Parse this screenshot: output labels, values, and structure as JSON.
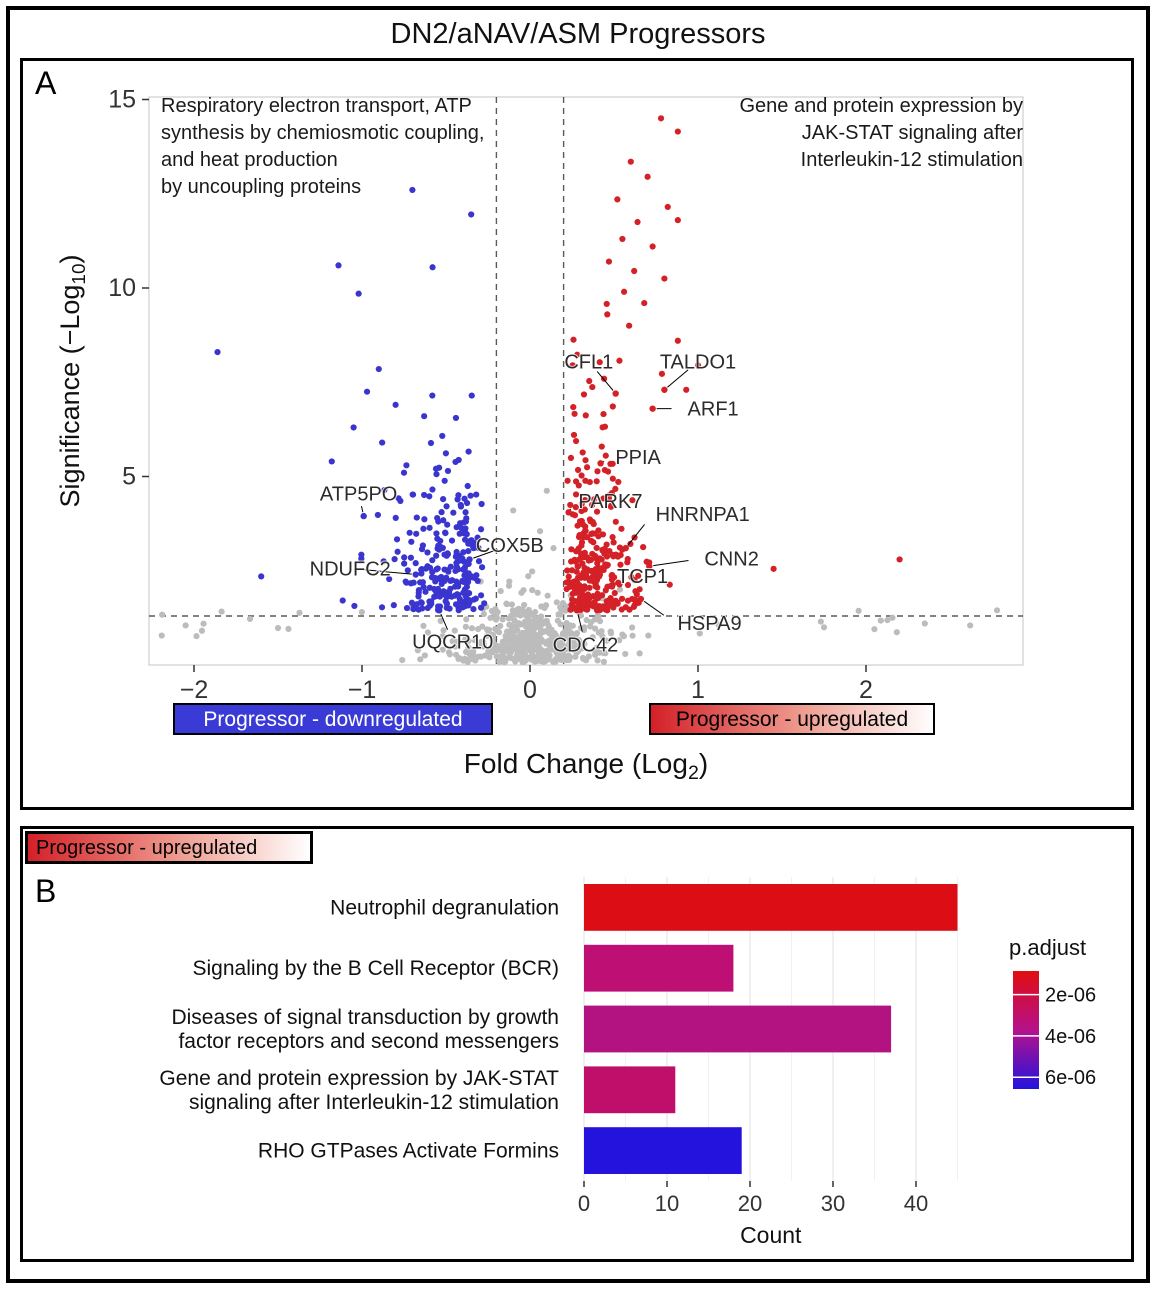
{
  "title": "DN2/aNAV/ASM Progressors",
  "panel_a": {
    "label": "A",
    "annotation_left": {
      "lines": [
        "Respiratory electron transport, ATP",
        "synthesis by chemiosmotic coupling,",
        "and heat production",
        "by uncoupling proteins"
      ]
    },
    "annotation_right": {
      "lines": [
        "Gene and protein expression by",
        "JAK-STAT signaling after",
        "Interleukin-12 stimulation"
      ]
    },
    "legend_down": "Progressor - downregulated",
    "legend_up": "Progressor - upregulated"
  },
  "panel_b": {
    "label": "B",
    "header": "Progressor - upregulated"
  },
  "colors": {
    "up_point": "#d42127",
    "down_point": "#3a35cf",
    "ns_point": "#bcbcbc",
    "dashed_line": "#5a5a5a",
    "axis_text": "#333333",
    "gene_label": "#2b2b2b"
  },
  "chart_data": [
    {
      "type": "scatter",
      "subtype": "volcano",
      "xlabel": {
        "pre": "Fold Change (Log",
        "sub": "2",
        "post": ")"
      },
      "ylabel": {
        "pre": "Significance (−Log",
        "sub": "10",
        "post": ")"
      },
      "xlim": [
        -2.3,
        2.95
      ],
      "ylim": [
        0,
        15.3
      ],
      "x_ticks": [
        {
          "v": -2,
          "label": "−2"
        },
        {
          "v": -1,
          "label": "−1"
        },
        {
          "v": 0,
          "label": "0"
        },
        {
          "v": 1,
          "label": "1"
        },
        {
          "v": 2,
          "label": "2"
        }
      ],
      "y_ticks": [
        {
          "v": 5,
          "label": "5"
        },
        {
          "v": 10,
          "label": "10"
        },
        {
          "v": 15,
          "label": "15"
        }
      ],
      "vlines": [
        -0.2,
        0.2
      ],
      "hline": 1.3,
      "clouds": {
        "up": {
          "n": 330,
          "x0": 0.21,
          "xg": 0.17,
          "xu": 0.08,
          "xmax": 1.32,
          "y0": 1.45,
          "ye": 1.6,
          "ymax": 9.6,
          "seed": 11
        },
        "down": {
          "n": 265,
          "x0": 0.27,
          "xg": 0.22,
          "xu": 0.12,
          "xmax": 1.72,
          "y0": 1.45,
          "ye": 1.35,
          "ymax": 7.9,
          "seed": 22
        },
        "ns": {
          "n": 480,
          "xs": 0.24,
          "ys": 0.78,
          "wide_n": 18,
          "seed": 33
        }
      },
      "outliers": {
        "up": [
          [
            0.78,
            14.5
          ],
          [
            0.88,
            14.15
          ],
          [
            0.6,
            13.35
          ],
          [
            0.7,
            12.95
          ],
          [
            0.52,
            12.35
          ],
          [
            0.82,
            12.15
          ],
          [
            0.64,
            11.75
          ],
          [
            0.88,
            11.8
          ],
          [
            0.55,
            11.3
          ],
          [
            0.73,
            11.1
          ],
          [
            0.47,
            10.7
          ],
          [
            0.62,
            10.45
          ],
          [
            0.8,
            10.25
          ],
          [
            0.56,
            9.9
          ],
          [
            0.68,
            9.6
          ],
          [
            0.46,
            9.3
          ],
          [
            0.59,
            9.0
          ],
          [
            0.88,
            8.6
          ],
          [
            1.0,
            7.95
          ],
          [
            0.93,
            7.3
          ],
          [
            1.45,
            2.55
          ],
          [
            2.2,
            2.8
          ]
        ],
        "down": [
          [
            -0.7,
            12.6
          ],
          [
            -0.35,
            11.95
          ],
          [
            -0.58,
            10.55
          ],
          [
            -1.14,
            10.6
          ],
          [
            -1.02,
            9.85
          ],
          [
            -1.86,
            8.3
          ],
          [
            -0.9,
            7.85
          ],
          [
            -0.97,
            7.25
          ],
          [
            -0.8,
            6.9
          ],
          [
            -0.63,
            6.6
          ],
          [
            -1.05,
            6.3
          ],
          [
            -0.88,
            5.9
          ],
          [
            -1.6,
            2.35
          ],
          [
            -1.18,
            5.4
          ],
          [
            -0.75,
            5.1
          ]
        ],
        "ns": [
          [
            -2.05,
            1.05
          ],
          [
            2.35,
            1.1
          ],
          [
            2.62,
            1.05
          ],
          [
            2.78,
            1.45
          ],
          [
            2.05,
            0.95
          ],
          [
            1.75,
            1.0
          ],
          [
            -1.5,
            0.98
          ],
          [
            0.1,
            4.62
          ],
          [
            -0.1,
            4.1
          ],
          [
            0.06,
            3.55
          ],
          [
            0.14,
            3.1
          ]
        ]
      },
      "genes": [
        {
          "name": "CFL1",
          "point": [
            0.51,
            7.2
          ],
          "label": [
            0.35,
            8.05
          ],
          "anchor": "middle"
        },
        {
          "name": "TALDO1",
          "point": [
            0.8,
            7.3
          ],
          "label": [
            1.0,
            8.05
          ],
          "anchor": "middle"
        },
        {
          "name": "ARF1",
          "point": [
            0.73,
            6.8
          ],
          "label": [
            0.92,
            6.8
          ],
          "anchor": "start"
        },
        {
          "name": "PPIA",
          "point": [
            0.42,
            5.35
          ],
          "label": [
            0.49,
            5.52
          ],
          "anchor": "start"
        },
        {
          "name": "PARK7",
          "point": [
            0.23,
            4.05
          ],
          "label": [
            0.27,
            4.35
          ],
          "anchor": "start"
        },
        {
          "name": "HNRNPA1",
          "point": [
            0.57,
            3.1
          ],
          "label": [
            0.73,
            4.0
          ],
          "anchor": "start"
        },
        {
          "name": "CNN2",
          "point": [
            0.71,
            2.62
          ],
          "label": [
            1.02,
            2.82
          ],
          "anchor": "start"
        },
        {
          "name": "TCP1",
          "point": [
            0.4,
            2.3
          ],
          "label": [
            0.5,
            2.36
          ],
          "anchor": "start"
        },
        {
          "name": "HSPA9",
          "point": [
            0.66,
            1.75
          ],
          "label": [
            0.86,
            1.12
          ],
          "anchor": "start"
        },
        {
          "name": "CDC42",
          "point": [
            0.28,
            1.45
          ],
          "label": [
            0.33,
            0.55
          ],
          "anchor": "middle"
        },
        {
          "name": "COX5B",
          "point": [
            -0.36,
            2.8
          ],
          "label": [
            -0.12,
            3.18
          ],
          "anchor": "middle"
        },
        {
          "name": "NDUFC2",
          "point": [
            -0.68,
            2.4
          ],
          "label": [
            -1.07,
            2.56
          ],
          "anchor": "middle"
        },
        {
          "name": "UQCR10",
          "point": [
            -0.54,
            1.45
          ],
          "label": [
            -0.46,
            0.62
          ],
          "anchor": "middle"
        },
        {
          "name": "ATP5PO",
          "point": [
            -0.99,
            3.95
          ],
          "label": [
            -1.02,
            4.55
          ],
          "anchor": "middle"
        }
      ]
    },
    {
      "type": "bar",
      "orientation": "horizontal",
      "categories": [
        "Neutrophil degranulation",
        "Signaling by the B Cell Receptor (BCR)",
        "Diseases of signal transduction by growth factor receptors and second messengers",
        "Gene and protein expression by JAK-STAT signaling after Interleukin-12 stimulation",
        "RHO GTPases Activate Formins"
      ],
      "label_lines": [
        [
          "Neutrophil degranulation"
        ],
        [
          "Signaling by the B Cell Receptor (BCR)"
        ],
        [
          "Diseases of signal transduction by growth",
          "factor receptors and second messengers"
        ],
        [
          "Gene and protein expression by JAK-STAT",
          "signaling after Interleukin-12 stimulation"
        ],
        [
          "RHO GTPases Activate Formins"
        ]
      ],
      "values": [
        45,
        18,
        37,
        11,
        19
      ],
      "bar_colors": [
        "#dc0d15",
        "#bd0f74",
        "#b31381",
        "#c00f6b",
        "#2313dd"
      ],
      "x_ticks": [
        0,
        10,
        20,
        30,
        40
      ],
      "xlim": [
        0,
        47
      ],
      "xlabel": "Count",
      "legend": {
        "title": "p.adjust",
        "ticks": [
          {
            "label": "2e-06",
            "t": 0.2
          },
          {
            "label": "4e-06",
            "t": 0.55
          },
          {
            "label": "6e-06",
            "t": 0.9
          }
        ],
        "gradient": [
          "#e10d10",
          "#b5118b",
          "#2313dd"
        ]
      }
    }
  ]
}
